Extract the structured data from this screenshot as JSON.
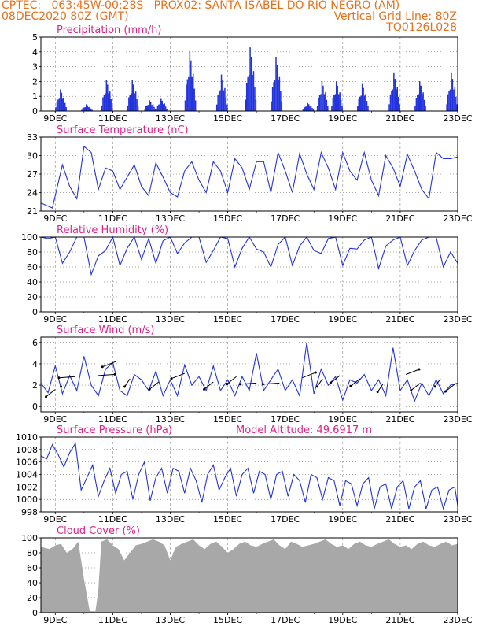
{
  "header": {
    "line1_left": "CPTEC:   063:45W-00:28S   PROX02: SANTA ISABEL DO RIO NEGRO (AM)",
    "line2_left": "08DEC2020 80Z (GMT)",
    "line2_right": "Vertical Grid Line: 80Z",
    "line3_right": "TQ0126L028",
    "model_altitude": "Model Altitude: 49.6917 m"
  },
  "colors": {
    "header": "#e8701a",
    "title": "#e0218a",
    "series": "#2233dd",
    "cloud": "#a8a8a8",
    "grid": "#555555",
    "vgrid": "#888888"
  },
  "chart_data": [
    {
      "type": "bar",
      "title": "Precipitation (mm/h)",
      "x_range": [
        8.5,
        23.0
      ],
      "ylim": [
        0,
        5
      ],
      "y_ticks": [
        0,
        1,
        2,
        3,
        4,
        5
      ],
      "x_ticks": [
        "9DEC",
        "11DEC",
        "13DEC",
        "15DEC",
        "17DEC",
        "19DEC",
        "21DEC",
        "23DEC"
      ],
      "peaks": [
        [
          9.2,
          1.6
        ],
        [
          10.1,
          0.5
        ],
        [
          10.8,
          2.3
        ],
        [
          11.7,
          2.3
        ],
        [
          12.3,
          0.8
        ],
        [
          12.7,
          0.9
        ],
        [
          13.7,
          4.4
        ],
        [
          14.8,
          2.7
        ],
        [
          15.8,
          4.7
        ],
        [
          16.7,
          4.0
        ],
        [
          17.8,
          0.6
        ],
        [
          18.3,
          2.2
        ],
        [
          18.8,
          2.2
        ],
        [
          19.7,
          2.0
        ],
        [
          20.8,
          2.8
        ],
        [
          21.7,
          2.2
        ],
        [
          22.8,
          2.8
        ]
      ]
    },
    {
      "type": "line",
      "title": "Surface Temperature (nC)",
      "x_range": [
        8.5,
        23.0
      ],
      "ylim": [
        21,
        33
      ],
      "y_ticks": [
        21,
        24,
        27,
        30,
        33
      ],
      "x_ticks": [
        "9DEC",
        "11DEC",
        "13DEC",
        "15DEC",
        "17DEC",
        "19DEC",
        "21DEC",
        "23DEC"
      ],
      "x": [
        8.5,
        8.9,
        9.25,
        9.5,
        9.75,
        10.0,
        10.25,
        10.5,
        10.75,
        11.0,
        11.25,
        11.5,
        11.75,
        12.0,
        12.25,
        12.5,
        12.75,
        13.0,
        13.25,
        13.5,
        13.75,
        14.0,
        14.25,
        14.5,
        14.75,
        15.0,
        15.25,
        15.5,
        15.75,
        16.0,
        16.25,
        16.5,
        16.75,
        17.0,
        17.25,
        17.5,
        17.75,
        18.0,
        18.25,
        18.5,
        18.75,
        19.0,
        19.25,
        19.5,
        19.75,
        20.0,
        20.25,
        20.5,
        20.75,
        21.0,
        21.25,
        21.5,
        21.75,
        22.0,
        22.25,
        22.5,
        22.75,
        23.0
      ],
      "y": [
        22.3,
        21.5,
        28.5,
        25.0,
        23.0,
        31.5,
        30.5,
        24.5,
        28.0,
        27.5,
        24.5,
        26.5,
        28.5,
        25.0,
        23.5,
        28.8,
        26.5,
        24.0,
        23.3,
        27.5,
        29.0,
        26.0,
        24.0,
        29.0,
        27.5,
        24.0,
        29.5,
        28.0,
        24.5,
        29.0,
        29.0,
        24.0,
        30.5,
        27.5,
        24.0,
        30.3,
        27.0,
        24.5,
        30.5,
        28.0,
        24.5,
        30.5,
        27.5,
        26.0,
        30.5,
        26.0,
        23.5,
        30.0,
        28.0,
        25.0,
        30.2,
        27.5,
        24.5,
        23.0,
        30.5,
        29.5,
        29.5,
        29.8
      ]
    },
    {
      "type": "line",
      "title": "Relative Humidity (%)",
      "x_range": [
        8.5,
        23.0
      ],
      "ylim": [
        0,
        100
      ],
      "y_ticks": [
        0,
        20,
        40,
        60,
        80,
        100
      ],
      "x_ticks": [
        "9DEC",
        "11DEC",
        "13DEC",
        "15DEC",
        "17DEC",
        "19DEC",
        "21DEC",
        "23DEC"
      ],
      "x": [
        8.5,
        8.75,
        9.0,
        9.25,
        9.5,
        9.75,
        10.0,
        10.25,
        10.5,
        10.75,
        11.0,
        11.25,
        11.5,
        11.75,
        12.0,
        12.25,
        12.5,
        12.75,
        13.0,
        13.25,
        13.5,
        13.75,
        14.0,
        14.25,
        14.5,
        14.75,
        15.0,
        15.25,
        15.5,
        15.75,
        16.0,
        16.25,
        16.5,
        16.75,
        17.0,
        17.25,
        17.5,
        17.75,
        18.0,
        18.25,
        18.5,
        18.75,
        19.0,
        19.25,
        19.5,
        19.75,
        20.0,
        20.25,
        20.5,
        20.75,
        21.0,
        21.25,
        21.5,
        21.75,
        22.0,
        22.25,
        22.5,
        22.75,
        23.0
      ],
      "y": [
        100,
        98,
        100,
        65,
        80,
        100,
        100,
        50,
        75,
        82,
        100,
        62,
        85,
        100,
        70,
        98,
        65,
        95,
        100,
        78,
        92,
        100,
        100,
        66,
        82,
        100,
        98,
        60,
        85,
        100,
        84,
        80,
        60,
        90,
        100,
        62,
        88,
        100,
        82,
        78,
        98,
        100,
        62,
        85,
        84,
        96,
        100,
        58,
        88,
        96,
        100,
        62,
        82,
        96,
        100,
        100,
        60,
        80,
        65
      ]
    },
    {
      "type": "line",
      "title": "Surface Wind (m/s)",
      "x_range": [
        8.5,
        23.0
      ],
      "ylim": [
        -0.5,
        6.5
      ],
      "y_ticks": [
        0,
        2,
        4,
        6
      ],
      "x_ticks": [
        "9DEC",
        "11DEC",
        "13DEC",
        "15DEC",
        "17DEC",
        "19DEC",
        "21DEC",
        "23DEC"
      ],
      "x": [
        8.5,
        8.75,
        9.0,
        9.25,
        9.5,
        9.75,
        10.0,
        10.25,
        10.5,
        10.75,
        11.0,
        11.25,
        11.5,
        11.75,
        12.0,
        12.25,
        12.5,
        12.75,
        13.0,
        13.25,
        13.5,
        13.75,
        14.0,
        14.25,
        14.5,
        14.75,
        15.0,
        15.25,
        15.5,
        15.75,
        16.0,
        16.25,
        16.5,
        16.75,
        17.0,
        17.25,
        17.5,
        17.75,
        18.0,
        18.25,
        18.5,
        18.75,
        19.0,
        19.25,
        19.5,
        19.75,
        20.0,
        20.25,
        20.5,
        20.75,
        21.0,
        21.25,
        21.5,
        21.75,
        22.0,
        22.25,
        22.5,
        22.75,
        23.0
      ],
      "y": [
        2.2,
        1.3,
        3.8,
        1.2,
        2.9,
        1.5,
        4.7,
        2.0,
        1.0,
        3.5,
        4.1,
        1.5,
        1.0,
        3.0,
        2.5,
        1.5,
        3.3,
        1.0,
        2.5,
        1.0,
        3.9,
        2.0,
        2.8,
        1.5,
        3.8,
        1.5,
        2.5,
        1.0,
        2.8,
        1.5,
        5.0,
        1.5,
        2.5,
        3.5,
        1.5,
        2.5,
        1.0,
        6.0,
        1.2,
        3.5,
        2.0,
        2.8,
        0.6,
        2.5,
        2.2,
        3.0,
        1.5,
        2.5,
        1.0,
        5.5,
        1.5,
        2.5,
        0.5,
        2.2,
        1.0,
        2.5,
        1.2,
        2.0,
        2.2
      ],
      "arrows": [
        [
          9.0,
          1.6,
          -3
        ],
        [
          9.2,
          2.3,
          0
        ],
        [
          9.7,
          2.8,
          -5
        ],
        [
          10.5,
          2.9,
          5
        ],
        [
          11.1,
          4.2,
          -4
        ],
        [
          11.6,
          2.6,
          -2
        ],
        [
          12.6,
          2.3,
          -3
        ],
        [
          13.5,
          3.1,
          -4
        ],
        [
          14.5,
          2.3,
          -3
        ],
        [
          15.3,
          2.8,
          -3
        ],
        [
          16.0,
          2.2,
          -5
        ],
        [
          16.8,
          2.2,
          -5
        ],
        [
          17.6,
          2.7,
          4
        ],
        [
          18.3,
          2.6,
          -2
        ],
        [
          18.9,
          2.9,
          -3
        ],
        [
          19.6,
          2.6,
          -3
        ],
        [
          20.4,
          2.1,
          -2
        ],
        [
          21.2,
          3.0,
          4
        ],
        [
          21.7,
          2.2,
          -3
        ],
        [
          22.4,
          2.6,
          -2
        ],
        [
          22.9,
          2.1,
          -3
        ]
      ]
    },
    {
      "type": "line",
      "title": "Surface Pressure (hPa)",
      "x_range": [
        8.5,
        23.0
      ],
      "ylim": [
        998,
        1010
      ],
      "y_ticks": [
        998,
        1000,
        1002,
        1004,
        1006,
        1008,
        1010
      ],
      "x_ticks": [
        "9DEC",
        "11DEC",
        "13DEC",
        "15DEC",
        "17DEC",
        "19DEC",
        "21DEC",
        "23DEC"
      ],
      "x": [
        8.5,
        8.7,
        8.9,
        9.1,
        9.3,
        9.5,
        9.7,
        9.9,
        10.1,
        10.3,
        10.5,
        10.7,
        10.9,
        11.1,
        11.3,
        11.5,
        11.7,
        11.9,
        12.1,
        12.3,
        12.5,
        12.7,
        12.9,
        13.1,
        13.3,
        13.5,
        13.7,
        13.9,
        14.1,
        14.3,
        14.5,
        14.7,
        14.9,
        15.1,
        15.3,
        15.5,
        15.7,
        15.9,
        16.1,
        16.3,
        16.5,
        16.7,
        16.9,
        17.1,
        17.3,
        17.5,
        17.7,
        17.9,
        18.1,
        18.3,
        18.5,
        18.7,
        18.9,
        19.1,
        19.3,
        19.5,
        19.7,
        19.9,
        20.1,
        20.3,
        20.5,
        20.7,
        20.9,
        21.1,
        21.3,
        21.5,
        21.7,
        21.9,
        22.1,
        22.3,
        22.5,
        22.7,
        22.9,
        23.0
      ],
      "y": [
        1007,
        1006.5,
        1008.8,
        1007.2,
        1005.2,
        1007.5,
        1009.0,
        1001.5,
        1003.5,
        1005.5,
        1000.5,
        1003.0,
        1005.0,
        1001.0,
        1004.0,
        1004.5,
        1000.0,
        1004.0,
        1006.0,
        999.8,
        1003.5,
        1005.0,
        1001.0,
        1005.0,
        1004.5,
        1001.0,
        1005.0,
        1003.0,
        999.5,
        1004.0,
        1005.5,
        1001.5,
        1003.5,
        1005.0,
        1000.5,
        1004.0,
        1005.0,
        1001.0,
        1004.5,
        1004.0,
        1000.0,
        1004.0,
        1004.5,
        1000.5,
        1004.0,
        1003.0,
        999.5,
        1004.0,
        1003.5,
        1000.0,
        1003.5,
        1003.0,
        999.0,
        1003.0,
        1002.5,
        999.0,
        1002.5,
        1003.5,
        998.5,
        1002.0,
        1002.5,
        998.5,
        1002.0,
        1003.0,
        998.5,
        1002.0,
        1003.0,
        998.5,
        1001.5,
        1002.0,
        998.5,
        1001.5,
        1002.0,
        999.0
      ]
    },
    {
      "type": "area",
      "title": "Cloud Cover (%)",
      "x_range": [
        8.5,
        23.0
      ],
      "ylim": [
        0,
        100
      ],
      "y_ticks": [
        0,
        20,
        40,
        60,
        80,
        100
      ],
      "x_ticks": [
        "9DEC",
        "11DEC",
        "13DEC",
        "15DEC",
        "17DEC",
        "19DEC",
        "21DEC",
        "23DEC"
      ],
      "x": [
        8.5,
        8.8,
        9.0,
        9.2,
        9.4,
        9.6,
        9.8,
        10.0,
        10.2,
        10.4,
        10.5,
        10.6,
        10.8,
        11.0,
        11.2,
        11.4,
        11.6,
        11.8,
        12.0,
        12.2,
        12.4,
        12.6,
        12.8,
        13.0,
        13.2,
        13.4,
        13.6,
        13.8,
        14.0,
        14.2,
        14.4,
        14.6,
        14.8,
        15.0,
        15.2,
        15.4,
        15.6,
        15.8,
        16.0,
        16.2,
        16.4,
        16.6,
        16.8,
        17.0,
        17.2,
        17.4,
        17.6,
        17.8,
        18.0,
        18.2,
        18.4,
        18.6,
        18.8,
        19.0,
        19.2,
        19.4,
        19.6,
        19.8,
        20.0,
        20.2,
        20.4,
        20.6,
        20.8,
        21.0,
        21.2,
        21.4,
        21.6,
        21.8,
        22.0,
        22.2,
        22.4,
        22.6,
        22.8,
        23.0
      ],
      "y": [
        88,
        85,
        90,
        92,
        80,
        85,
        95,
        45,
        2,
        2,
        30,
        95,
        98,
        90,
        85,
        70,
        80,
        90,
        92,
        95,
        98,
        95,
        90,
        70,
        88,
        92,
        95,
        98,
        90,
        85,
        92,
        95,
        88,
        80,
        85,
        92,
        95,
        90,
        88,
        92,
        95,
        98,
        90,
        85,
        95,
        92,
        88,
        90,
        92,
        95,
        98,
        92,
        88,
        90,
        85,
        92,
        95,
        90,
        88,
        92,
        95,
        98,
        92,
        88,
        90,
        85,
        92,
        95,
        90,
        88,
        92,
        95,
        90,
        92
      ]
    }
  ]
}
